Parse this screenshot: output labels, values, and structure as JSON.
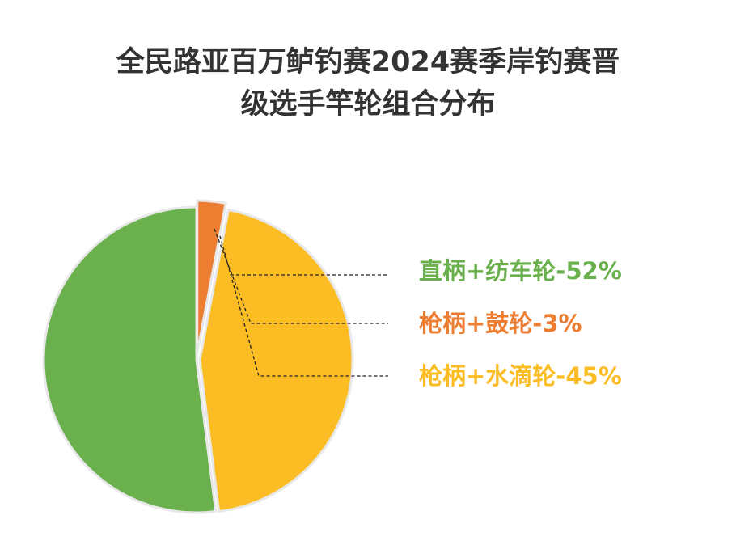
{
  "chart_data": {
    "type": "pie",
    "title": [
      "全民路亚百万鲈钓赛2024赛季岸钓赛晋",
      "级选手竿轮组合分布"
    ],
    "values": [
      52,
      3,
      45
    ],
    "value_labels": [
      "直柄+纺车轮-52%",
      "枪柄+鼓轮-3%",
      "枪柄+水滴轮-45%"
    ],
    "colors": [
      "#6ab04c",
      "#ed7d31",
      "#fbbd23"
    ]
  }
}
